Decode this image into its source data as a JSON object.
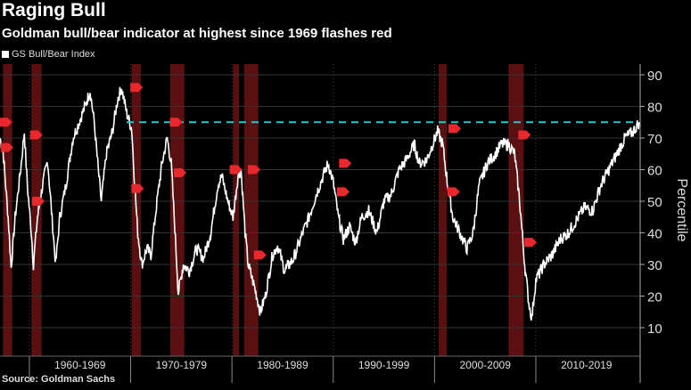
{
  "title": "Raging Bull",
  "subtitle": "Goldman bull/bear indicator at highest since 1969 flashes red",
  "source": "Source: Goldman Sachs",
  "chart_data": {
    "type": "line",
    "title": "Raging Bull",
    "ylabel": "Percentile",
    "ylim": [
      8,
      93
    ],
    "xlim": [
      1957.1,
      2020.3
    ],
    "yticks": [
      10,
      20,
      30,
      40,
      50,
      60,
      70,
      80,
      90
    ],
    "decades": [
      {
        "label": "1960-1969",
        "start": 1960
      },
      {
        "label": "1970-1979",
        "start": 1970
      },
      {
        "label": "1980-1989",
        "start": 1980
      },
      {
        "label": "1990-1999",
        "start": 1990
      },
      {
        "label": "2000-2009",
        "start": 2000
      },
      {
        "label": "2010-2019",
        "start": 2010
      }
    ],
    "threshold": 75,
    "colors": {
      "line": "#ffffff",
      "threshold": "#2ec4c4",
      "band": "#5a1010",
      "marker": "#e8282c",
      "grid": "#333333"
    },
    "series": [
      {
        "name": "GS Bull/Bear Index",
        "points": [
          [
            1957.1,
            70
          ],
          [
            1957.4,
            66
          ],
          [
            1957.9,
            45
          ],
          [
            1958.2,
            29
          ],
          [
            1958.6,
            45
          ],
          [
            1959.2,
            62
          ],
          [
            1959.5,
            72
          ],
          [
            1959.8,
            55
          ],
          [
            1960.2,
            40
          ],
          [
            1960.4,
            30
          ],
          [
            1960.8,
            45
          ],
          [
            1961.3,
            55
          ],
          [
            1961.8,
            63
          ],
          [
            1962.3,
            42
          ],
          [
            1962.6,
            30
          ],
          [
            1963.0,
            45
          ],
          [
            1963.6,
            55
          ],
          [
            1964.3,
            70
          ],
          [
            1964.9,
            75
          ],
          [
            1965.5,
            80
          ],
          [
            1966.0,
            85
          ],
          [
            1966.4,
            75
          ],
          [
            1966.8,
            60
          ],
          [
            1967.1,
            50
          ],
          [
            1967.6,
            65
          ],
          [
            1968.2,
            72
          ],
          [
            1968.7,
            82
          ],
          [
            1969.1,
            86
          ],
          [
            1969.6,
            78
          ],
          [
            1970.1,
            73
          ],
          [
            1970.4,
            55
          ],
          [
            1970.7,
            40
          ],
          [
            1971.1,
            30
          ],
          [
            1971.6,
            35
          ],
          [
            1972.0,
            33
          ],
          [
            1972.6,
            50
          ],
          [
            1973.1,
            62
          ],
          [
            1973.6,
            70
          ],
          [
            1974.0,
            62
          ],
          [
            1974.3,
            45
          ],
          [
            1974.7,
            21
          ],
          [
            1975.2,
            30
          ],
          [
            1975.8,
            28
          ],
          [
            1976.5,
            35
          ],
          [
            1977.2,
            32
          ],
          [
            1977.9,
            40
          ],
          [
            1978.6,
            55
          ],
          [
            1979.0,
            58
          ],
          [
            1979.6,
            50
          ],
          [
            1980.1,
            45
          ],
          [
            1980.6,
            58
          ],
          [
            1980.9,
            60
          ],
          [
            1981.3,
            40
          ],
          [
            1981.6,
            30
          ],
          [
            1982.3,
            22
          ],
          [
            1982.8,
            15
          ],
          [
            1983.3,
            20
          ],
          [
            1984.0,
            33
          ],
          [
            1984.5,
            36
          ],
          [
            1985.2,
            28
          ],
          [
            1986.1,
            32
          ],
          [
            1987.0,
            40
          ],
          [
            1987.6,
            45
          ],
          [
            1988.3,
            52
          ],
          [
            1989.0,
            58
          ],
          [
            1989.5,
            62
          ],
          [
            1990.0,
            56
          ],
          [
            1990.5,
            45
          ],
          [
            1991.0,
            38
          ],
          [
            1991.6,
            42
          ],
          [
            1992.2,
            37
          ],
          [
            1992.8,
            45
          ],
          [
            1993.5,
            47
          ],
          [
            1994.3,
            40
          ],
          [
            1995.0,
            50
          ],
          [
            1995.7,
            52
          ],
          [
            1996.5,
            60
          ],
          [
            1997.2,
            63
          ],
          [
            1998.0,
            68
          ],
          [
            1998.5,
            62
          ],
          [
            1999.2,
            63
          ],
          [
            1999.8,
            68
          ],
          [
            2000.3,
            72
          ],
          [
            2000.8,
            68
          ],
          [
            2001.3,
            55
          ],
          [
            2001.8,
            45
          ],
          [
            2002.5,
            40
          ],
          [
            2003.2,
            35
          ],
          [
            2003.8,
            40
          ],
          [
            2004.4,
            55
          ],
          [
            2005.2,
            62
          ],
          [
            2006.0,
            65
          ],
          [
            2006.6,
            68
          ],
          [
            2007.3,
            68
          ],
          [
            2007.9,
            65
          ],
          [
            2008.4,
            50
          ],
          [
            2008.9,
            30
          ],
          [
            2009.3,
            18
          ],
          [
            2009.6,
            13
          ],
          [
            2010.0,
            25
          ],
          [
            2010.8,
            30
          ],
          [
            2011.6,
            33
          ],
          [
            2012.4,
            38
          ],
          [
            2013.2,
            40
          ],
          [
            2014.0,
            44
          ],
          [
            2014.8,
            48
          ],
          [
            2015.6,
            47
          ],
          [
            2016.4,
            55
          ],
          [
            2017.2,
            60
          ],
          [
            2018.0,
            65
          ],
          [
            2018.8,
            70
          ],
          [
            2019.6,
            72
          ],
          [
            2020.2,
            75
          ]
        ]
      }
    ],
    "recession_bands": [
      [
        1957.4,
        1958.3
      ],
      [
        1960.2,
        1961.2
      ],
      [
        1970.1,
        1971.0
      ],
      [
        1973.9,
        1975.3
      ],
      [
        1980.1,
        1980.7
      ],
      [
        1981.2,
        1982.6
      ],
      [
        2000.4,
        2001.2
      ],
      [
        2007.3,
        2008.8
      ]
    ],
    "markers": [
      [
        1957.6,
        75
      ],
      [
        1957.7,
        67
      ],
      [
        1960.6,
        71
      ],
      [
        1960.8,
        50
      ],
      [
        1970.5,
        86
      ],
      [
        1970.6,
        54
      ],
      [
        1974.4,
        75
      ],
      [
        1974.8,
        59
      ],
      [
        1980.3,
        60
      ],
      [
        1982.1,
        60
      ],
      [
        1982.7,
        33
      ],
      [
        1991.1,
        62
      ],
      [
        1990.9,
        53
      ],
      [
        2001.9,
        73
      ],
      [
        2001.8,
        53
      ],
      [
        2008.8,
        71
      ],
      [
        2009.4,
        37
      ]
    ]
  }
}
